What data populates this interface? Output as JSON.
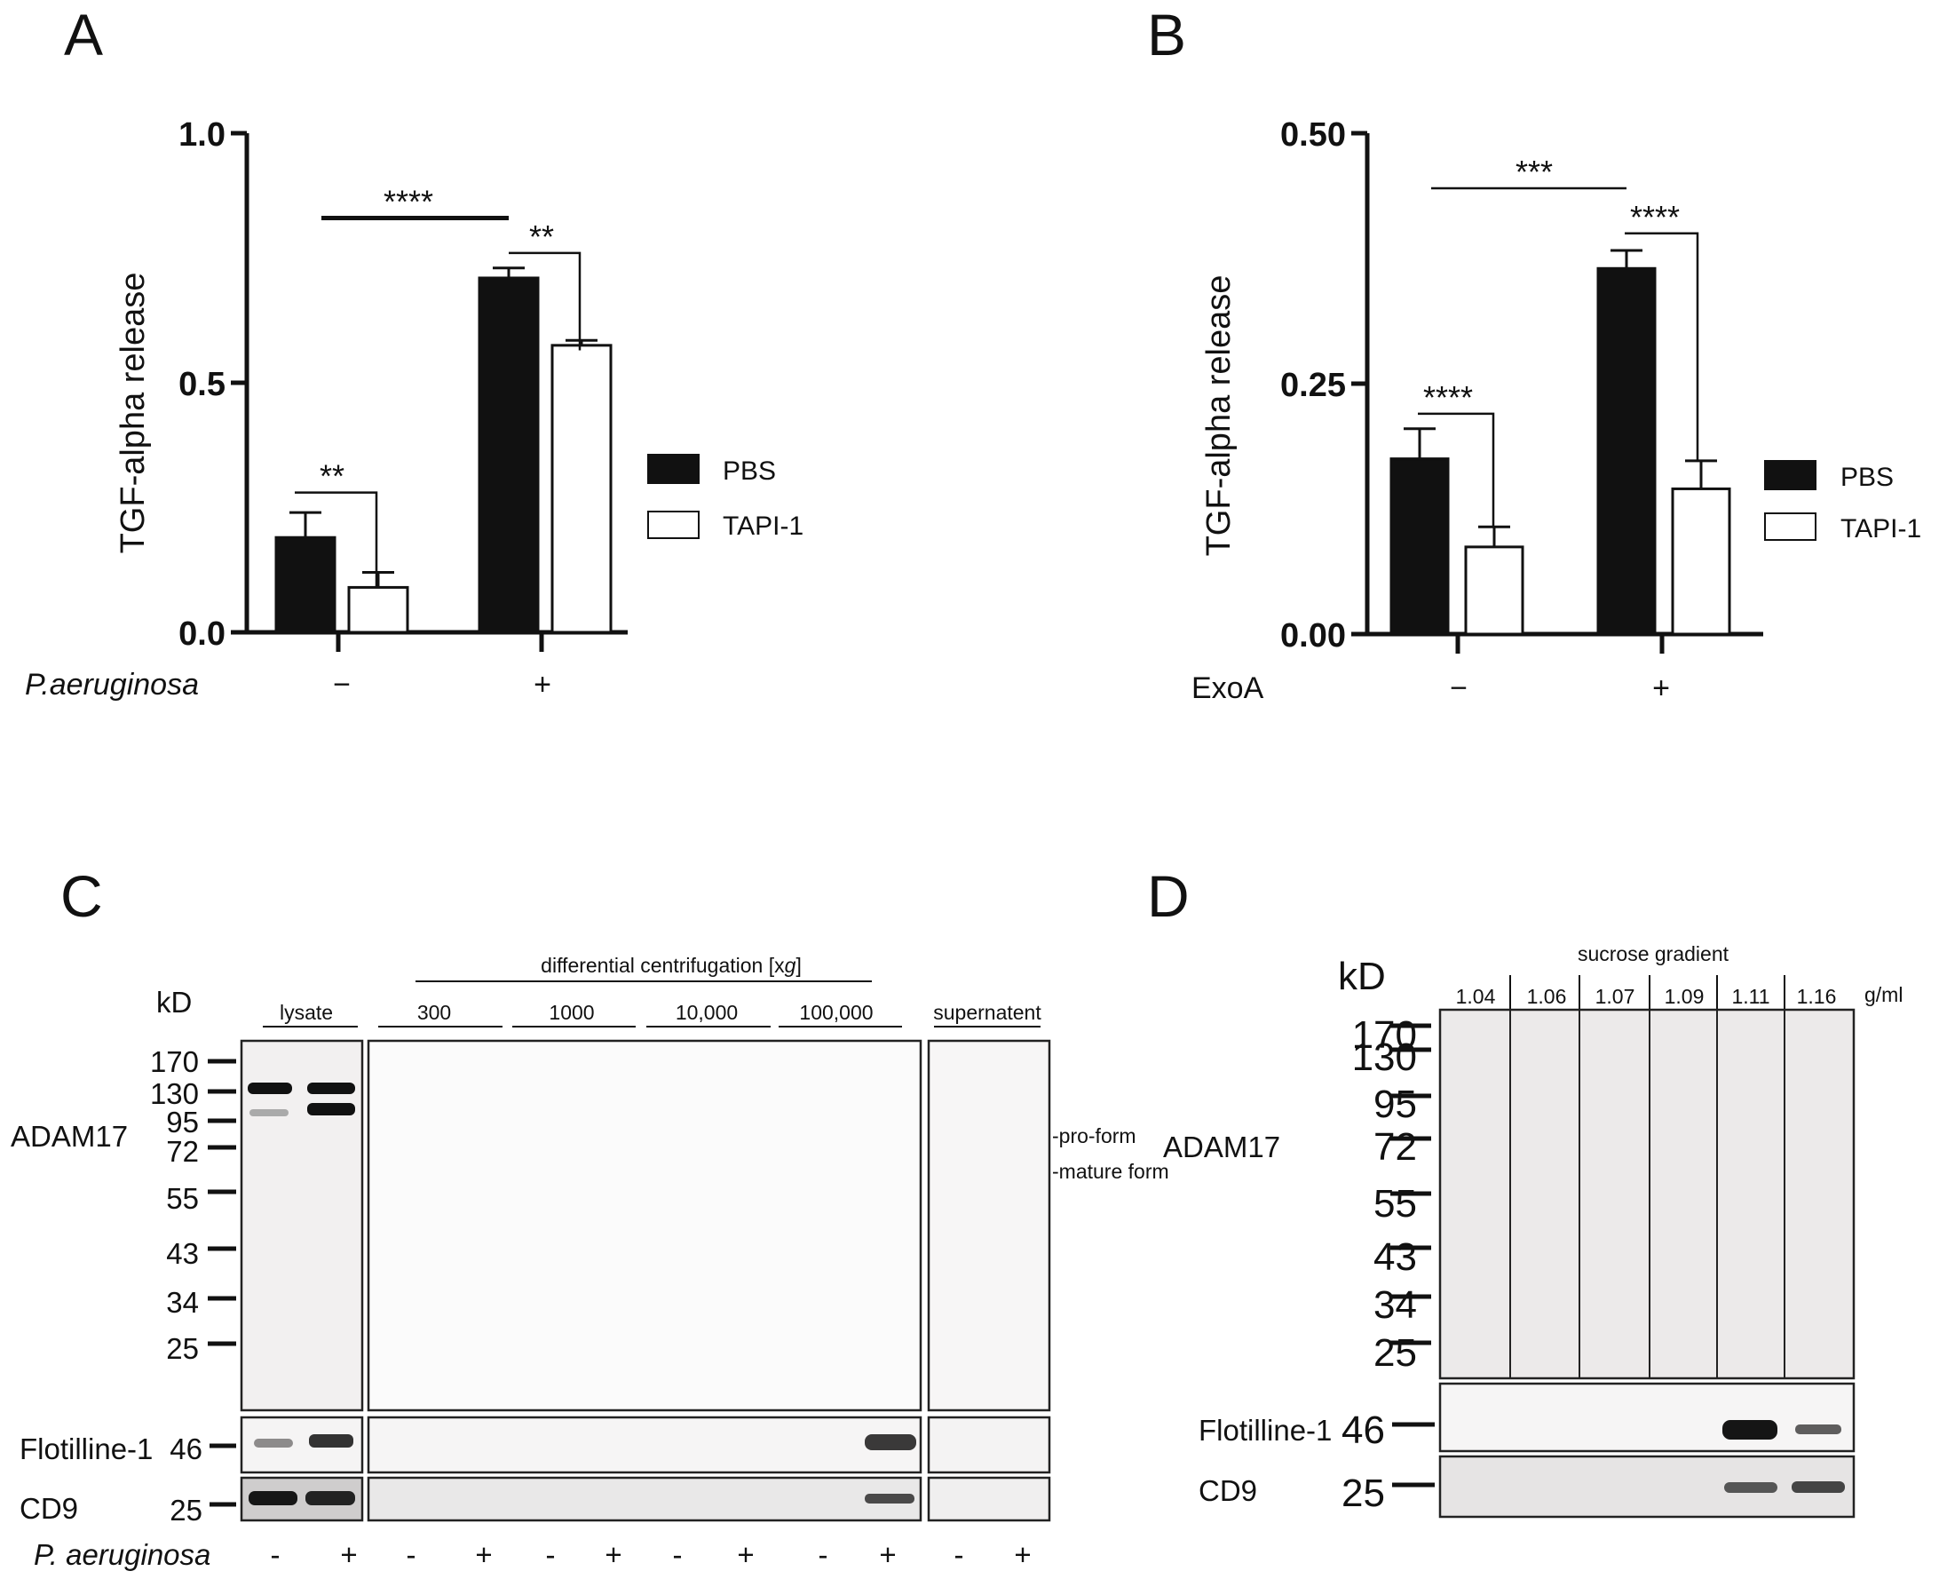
{
  "chart_data": [
    {
      "type": "bar",
      "panel": "A",
      "ylabel": "TGF-alpha release",
      "xlabel": "P.aeruginosa",
      "categories": [
        "−",
        "+"
      ],
      "ylim": [
        0,
        1.0
      ],
      "yticks": [
        "0.0",
        "0.5",
        "1.0"
      ],
      "series": [
        {
          "name": "PBS",
          "values": [
            0.19,
            0.71
          ],
          "errors": [
            0.05,
            0.02
          ],
          "fill": "#111111"
        },
        {
          "name": "TAPI-1",
          "values": [
            0.09,
            0.575
          ],
          "errors": [
            0.03,
            0.01
          ],
          "fill": "#ffffff"
        }
      ],
      "significance": [
        {
          "label": "**",
          "y": 0.28
        },
        {
          "label": "****",
          "y": 0.83
        },
        {
          "label": "**",
          "y": 0.76
        }
      ]
    },
    {
      "type": "bar",
      "panel": "B",
      "ylabel": "TGF-alpha release",
      "xlabel": "ExoA",
      "categories": [
        "−",
        "+"
      ],
      "ylim": [
        0,
        0.5
      ],
      "yticks": [
        "0.00",
        "0.25",
        "0.50"
      ],
      "series": [
        {
          "name": "PBS",
          "values": [
            0.175,
            0.365
          ],
          "errors": [
            0.03,
            0.018
          ],
          "fill": "#111111"
        },
        {
          "name": "TAPI-1",
          "values": [
            0.087,
            0.145
          ],
          "errors": [
            0.02,
            0.028
          ],
          "fill": "#ffffff"
        }
      ],
      "significance": [
        {
          "label": "****",
          "y": 0.22
        },
        {
          "label": "***",
          "y": 0.445
        },
        {
          "label": "****",
          "y": 0.4
        }
      ]
    }
  ],
  "panel_c": {
    "label": "C",
    "kd": "kD",
    "header": "differential centrifugation [xg]",
    "header_main": "differential centrifugation [x",
    "header_italic": "g",
    "header_end": "]",
    "lane_groups": [
      "lysate",
      "300",
      "1000",
      "10,000",
      "100,000",
      "supernatent"
    ],
    "markers": [
      "170",
      "130",
      "95",
      "72",
      "55",
      "43",
      "34",
      "25"
    ],
    "rows": [
      "ADAM17",
      "Flotilline-1",
      "CD9"
    ],
    "row_markers": [
      "46",
      "25"
    ],
    "annotations": [
      "-pro-form",
      "-mature form"
    ],
    "condition": "P. aeruginosa",
    "signs": [
      "-",
      "+",
      "-",
      "+",
      "-",
      "+",
      "-",
      "+",
      "-",
      "+",
      "-",
      "+"
    ]
  },
  "panel_d": {
    "label": "D",
    "kd": "kD",
    "header": "sucrose gradient",
    "densities": [
      "1.04",
      "1.06",
      "1.07",
      "1.09",
      "1.11",
      "1.16"
    ],
    "unit": "g/ml",
    "markers": [
      "170",
      "130",
      "95",
      "72",
      "55",
      "43",
      "34",
      "25"
    ],
    "rows": [
      "ADAM17",
      "Flotilline-1",
      "CD9"
    ],
    "row_markers": [
      "46",
      "25"
    ]
  }
}
